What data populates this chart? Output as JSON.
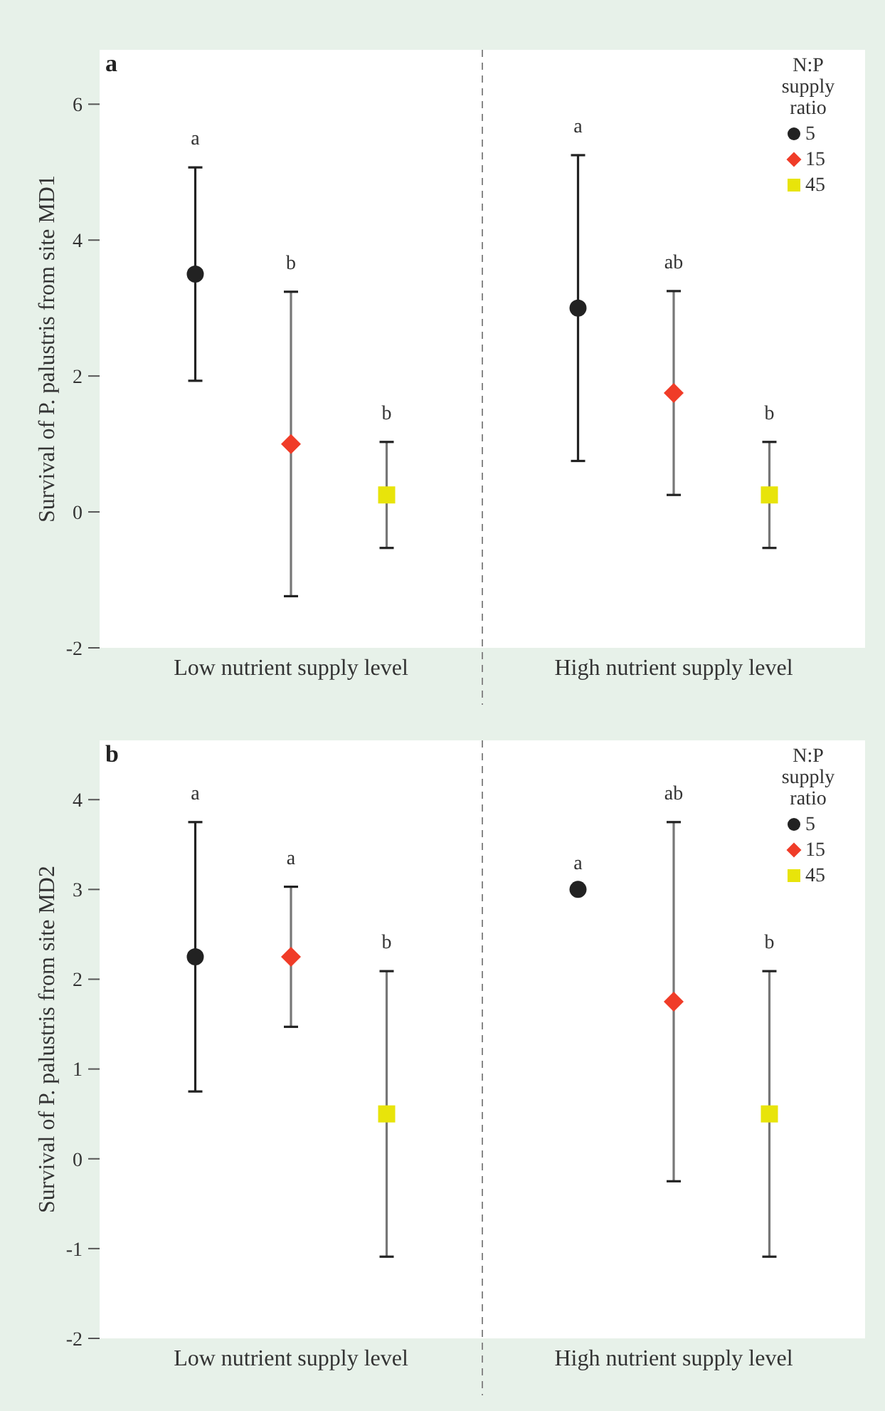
{
  "chart_data": [
    {
      "type": "scatter",
      "title": "a",
      "ylabel": "Survival of P. palustris from site MD1",
      "categories": [
        "Low nutrient supply level",
        "High nutrient supply level"
      ],
      "ylim": [
        -2,
        6.8
      ],
      "yticks": [
        -2,
        0,
        2,
        4,
        6
      ],
      "legend": "top right",
      "legend_title": "N:P supply ratio",
      "series": [
        {
          "name": "5",
          "color": "#222222",
          "marker": "circle",
          "values": [
            3.5,
            3.0
          ],
          "errors": [
            1.57,
            2.25
          ]
        },
        {
          "name": "15",
          "color": "#f03c28",
          "marker": "diamond",
          "values": [
            1.0,
            1.75
          ],
          "errors": [
            2.24,
            1.5
          ]
        },
        {
          "name": "45",
          "color": "#e8e40a",
          "marker": "square",
          "values": [
            0.25,
            0.25
          ],
          "errors": [
            0.78,
            0.78
          ]
        }
      ],
      "annotations": [
        "a",
        "b",
        "b",
        "a",
        "ab",
        "b"
      ]
    },
    {
      "type": "scatter",
      "title": "b",
      "ylabel": "Survival of P. palustris from site MD2",
      "categories": [
        "Low nutrient supply level",
        "High nutrient supply level"
      ],
      "ylim": [
        -2,
        4.66
      ],
      "yticks": [
        -2,
        -1,
        0,
        1,
        2,
        3,
        4
      ],
      "legend": "top right",
      "legend_title": "N:P supply ratio",
      "series": [
        {
          "name": "5",
          "color": "#222222",
          "marker": "circle",
          "values": [
            2.25,
            3.0
          ],
          "errors": [
            1.5,
            null
          ]
        },
        {
          "name": "15",
          "color": "#f03c28",
          "marker": "diamond",
          "values": [
            2.25,
            1.75
          ],
          "errors": [
            0.78,
            2.0
          ]
        },
        {
          "name": "45",
          "color": "#e8e40a",
          "marker": "square",
          "values": [
            0.5,
            0.5
          ],
          "errors": [
            1.59,
            1.59
          ]
        }
      ],
      "annotations": [
        "a",
        "a",
        "b",
        "a",
        "ab",
        "b"
      ]
    }
  ]
}
